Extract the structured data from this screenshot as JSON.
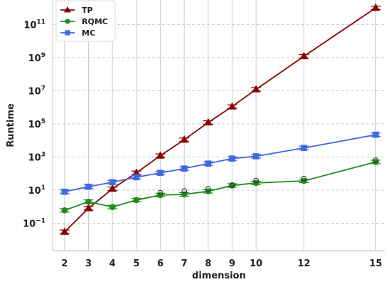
{
  "chart_data": {
    "type": "line",
    "title": "",
    "xlabel": "dimension",
    "ylabel": "Runtime",
    "yscale": "log",
    "x": [
      2,
      3,
      4,
      5,
      6,
      7,
      8,
      9,
      10,
      12,
      15
    ],
    "x_ticks": [
      "2",
      "3",
      "4",
      "5",
      "6",
      "7",
      "8",
      "9",
      "10",
      "12",
      "15"
    ],
    "y_ticks": [
      {
        "value": 0.1,
        "base": "10",
        "exp": "−1"
      },
      {
        "value": 10,
        "base": "10",
        "exp": "1"
      },
      {
        "value": 1000,
        "base": "10",
        "exp": "3"
      },
      {
        "value": 100000,
        "base": "10",
        "exp": "5"
      },
      {
        "value": 10000000,
        "base": "10",
        "exp": "7"
      },
      {
        "value": 1000000000,
        "base": "10",
        "exp": "9"
      },
      {
        "value": 100000000000,
        "base": "10",
        "exp": "11"
      }
    ],
    "ylim": [
      0.0022,
      3000000000000.0
    ],
    "xlim": [
      1.5,
      15.4
    ],
    "grid": true,
    "legend_position": "top-left",
    "series": [
      {
        "name": "TP",
        "color": "#8b0000",
        "marker": "triangle",
        "x": [
          2,
          3,
          4,
          5,
          6,
          7,
          8,
          9,
          10,
          12,
          15
        ],
        "values": [
          0.03,
          0.8,
          12,
          110,
          1200,
          11000,
          120000,
          1100000,
          12000000,
          1200000000,
          1000000000000
        ]
      },
      {
        "name": "RQMC",
        "color": "#228b22",
        "marker": "circle",
        "x": [
          2,
          3,
          4,
          5,
          6,
          7,
          8,
          9,
          10,
          12,
          15
        ],
        "values": [
          0.6,
          2.0,
          0.95,
          2.5,
          5.0,
          5.5,
          8.5,
          19,
          27,
          36,
          500
        ],
        "outliers": [
          7.0,
          9.0,
          12.0,
          20.0,
          38.0,
          50.0,
          650.0
        ]
      },
      {
        "name": "MC",
        "color": "#4169e1",
        "marker": "square",
        "x": [
          2,
          3,
          4,
          5,
          6,
          7,
          8,
          9,
          10,
          12,
          15
        ],
        "values": [
          8,
          16,
          30,
          60,
          110,
          200,
          400,
          800,
          1100,
          3500,
          22000
        ]
      }
    ]
  }
}
